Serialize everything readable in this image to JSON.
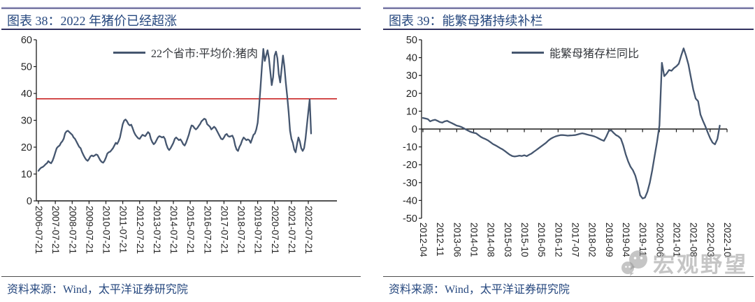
{
  "panels": [
    {
      "title": "图表 38：2022 年猪价已经超涨",
      "legend": "22个省市:平均价:猪肉",
      "source": "资料来源：Wind，太平洋证券研究院"
    },
    {
      "title": "图表 39：能繁母猪持续补栏",
      "legend": "能繁母猪存栏同比",
      "source": "资料来源：Wind，太平洋证券研究院"
    }
  ],
  "watermark": {
    "text": "宏观野望",
    "icon": "chat-bubbles-logo"
  },
  "colors": {
    "title_navy": "#25477E",
    "series_line": "#45566F",
    "ref_red": "#C00000",
    "axis_black": "#1A1A1A",
    "axis_label": "#262626",
    "watermark_gray": "#969696"
  },
  "chart_data": [
    {
      "type": "line",
      "title": "图表 38：2022 年猪价已经超涨",
      "legend": [
        "22个省市:平均价:猪肉"
      ],
      "x_start": "2006-07",
      "x_freq": "monthly",
      "x_tick_labels": [
        "2006-07-21",
        "2007-07-21",
        "2008-07-21",
        "2009-07-21",
        "2010-07-21",
        "2011-07-21",
        "2012-07-21",
        "2013-07-21",
        "2014-07-21",
        "2015-07-21",
        "2016-07-21",
        "2017-07-21",
        "2018-07-21",
        "2019-07-21",
        "2020-07-21",
        "2021-07-21",
        "2022-07-21"
      ],
      "x_tick_interval_months": 12,
      "ylim": [
        0,
        60
      ],
      "y_ticks": [
        0,
        10,
        20,
        30,
        40,
        50,
        60
      ],
      "ref_line": {
        "value": 38,
        "color": "#C00000"
      },
      "grid": false,
      "legend_position": "top-center",
      "values": [
        11.2,
        11.9,
        12.4,
        12.6,
        13.0,
        13.6,
        14.0,
        14.8,
        14.3,
        14.0,
        14.9,
        16.3,
        18.0,
        19.6,
        20.2,
        20.6,
        21.6,
        22.2,
        23.2,
        25.2,
        25.9,
        26.1,
        25.6,
        25.1,
        24.6,
        23.6,
        23.1,
        22.1,
        21.1,
        20.1,
        19.6,
        18.2,
        17.1,
        16.1,
        15.3,
        14.9,
        15.6,
        16.6,
        16.9,
        16.6,
        16.9,
        17.3,
        17.1,
        16.1,
        15.1,
        14.5,
        14.2,
        14.9,
        16.1,
        17.6,
        18.1,
        18.3,
        18.9,
        19.6,
        20.6,
        21.6,
        21.2,
        22.2,
        23.6,
        26.1,
        28.6,
        29.9,
        30.3,
        29.6,
        28.6,
        28.1,
        28.4,
        27.1,
        25.6,
        24.6,
        23.9,
        23.3,
        23.1,
        23.9,
        24.6,
        24.3,
        24.1,
        24.9,
        25.6,
        25.1,
        23.1,
        21.9,
        21.1,
        21.6,
        22.6,
        23.6,
        24.1,
        23.9,
        23.6,
        23.9,
        23.1,
        21.1,
        19.6,
        18.9,
        19.6,
        20.6,
        21.6,
        23.1,
        23.6,
        23.1,
        22.6,
        22.9,
        22.1,
        21.1,
        20.6,
        21.6,
        23.1,
        24.6,
        26.6,
        28.1,
        27.9,
        27.1,
        26.6,
        27.1,
        27.9,
        28.6,
        29.6,
        30.1,
        30.6,
        30.3,
        28.6,
        28.1,
        27.6,
        26.6,
        27.1,
        27.6,
        27.1,
        26.1,
        25.1,
        24.1,
        23.1,
        22.9,
        23.6,
        24.6,
        24.9,
        24.1,
        23.9,
        24.1,
        24.3,
        23.1,
        20.6,
        19.1,
        18.6,
        20.1,
        21.1,
        22.6,
        23.6,
        23.1,
        22.6,
        22.9,
        22.6,
        21.6,
        23.1,
        24.6,
        25.1,
        26.6,
        29.1,
        35.1,
        42.1,
        50.1,
        56.6,
        52.1,
        54.1,
        56.1,
        53.1,
        48.1,
        43.1,
        46.1,
        54.1,
        55.6,
        53.1,
        47.1,
        44.1,
        49.1,
        54.1,
        50.1,
        44.1,
        39.1,
        33.1,
        26.1,
        23.1,
        21.6,
        19.1,
        18.1,
        21.1,
        23.6,
        22.1,
        19.6,
        18.6,
        19.6,
        23.1,
        28.1,
        33.1,
        37.8,
        25.1
      ]
    },
    {
      "type": "line",
      "title": "图表 39：能繁母猪持续补栏",
      "legend": [
        "能繁母猪存栏同比"
      ],
      "x_start": "2012-04",
      "x_freq": "monthly",
      "x_tick_labels": [
        "2012-04",
        "2012-11",
        "2013-06",
        "2014-01",
        "2014-08",
        "2015-03",
        "2015-10",
        "2016-05",
        "2016-12",
        "2017-07",
        "2018-02",
        "2018-09",
        "2019-04",
        "2019-11",
        "2020-06",
        "2021-01",
        "2021-08",
        "2022-03",
        "2022-10"
      ],
      "x_tick_interval_months": 7,
      "ylim": [
        -50,
        50
      ],
      "y_ticks": [
        -50,
        -40,
        -30,
        -20,
        -10,
        0,
        10,
        20,
        30,
        40,
        50
      ],
      "ref_line": {
        "value": 0,
        "color": "#1A1A1A"
      },
      "grid": false,
      "legend_position": "top-center",
      "values": [
        6.2,
        5.9,
        5.6,
        4.3,
        4.9,
        5.2,
        4.6,
        3.9,
        3.6,
        4.3,
        4.6,
        3.9,
        3.3,
        2.6,
        1.9,
        1.6,
        1.1,
        0.4,
        -0.4,
        -1.1,
        -1.7,
        -2.1,
        -2.4,
        -3.4,
        -4.4,
        -5.1,
        -5.7,
        -6.4,
        -7.4,
        -8.4,
        -9.1,
        -9.9,
        -10.7,
        -11.4,
        -12.4,
        -13.4,
        -14.4,
        -15.1,
        -15.4,
        -15.2,
        -14.9,
        -15.1,
        -14.7,
        -15.2,
        -14.4,
        -13.7,
        -12.7,
        -11.7,
        -10.7,
        -9.7,
        -8.7,
        -7.7,
        -6.4,
        -5.4,
        -4.7,
        -4.1,
        -3.7,
        -3.4,
        -3.4,
        -3.5,
        -3.7,
        -3.6,
        -3.5,
        -3.4,
        -3.1,
        -2.7,
        -2.4,
        -2.7,
        -3.1,
        -3.4,
        -3.7,
        -4.1,
        -4.7,
        -5.4,
        -6.1,
        -6.6,
        -4.1,
        -1.1,
        -0.7,
        -2.1,
        -3.4,
        -4.1,
        -5.4,
        -9.1,
        -14.1,
        -18.1,
        -21.1,
        -23.1,
        -26.1,
        -31.1,
        -37.1,
        -38.9,
        -38.4,
        -35.1,
        -30.1,
        -23.1,
        -15.1,
        -7.1,
        2.0,
        37.1,
        29.6,
        31.1,
        33.1,
        32.6,
        34.1,
        35.1,
        36.6,
        41.1,
        45.2,
        41.1,
        36.1,
        29.1,
        22.1,
        17.1,
        15.6,
        8.1,
        4.6,
        1.6,
        -1.9,
        -5.1,
        -7.6,
        -8.6,
        -5.6,
        1.9
      ]
    }
  ]
}
